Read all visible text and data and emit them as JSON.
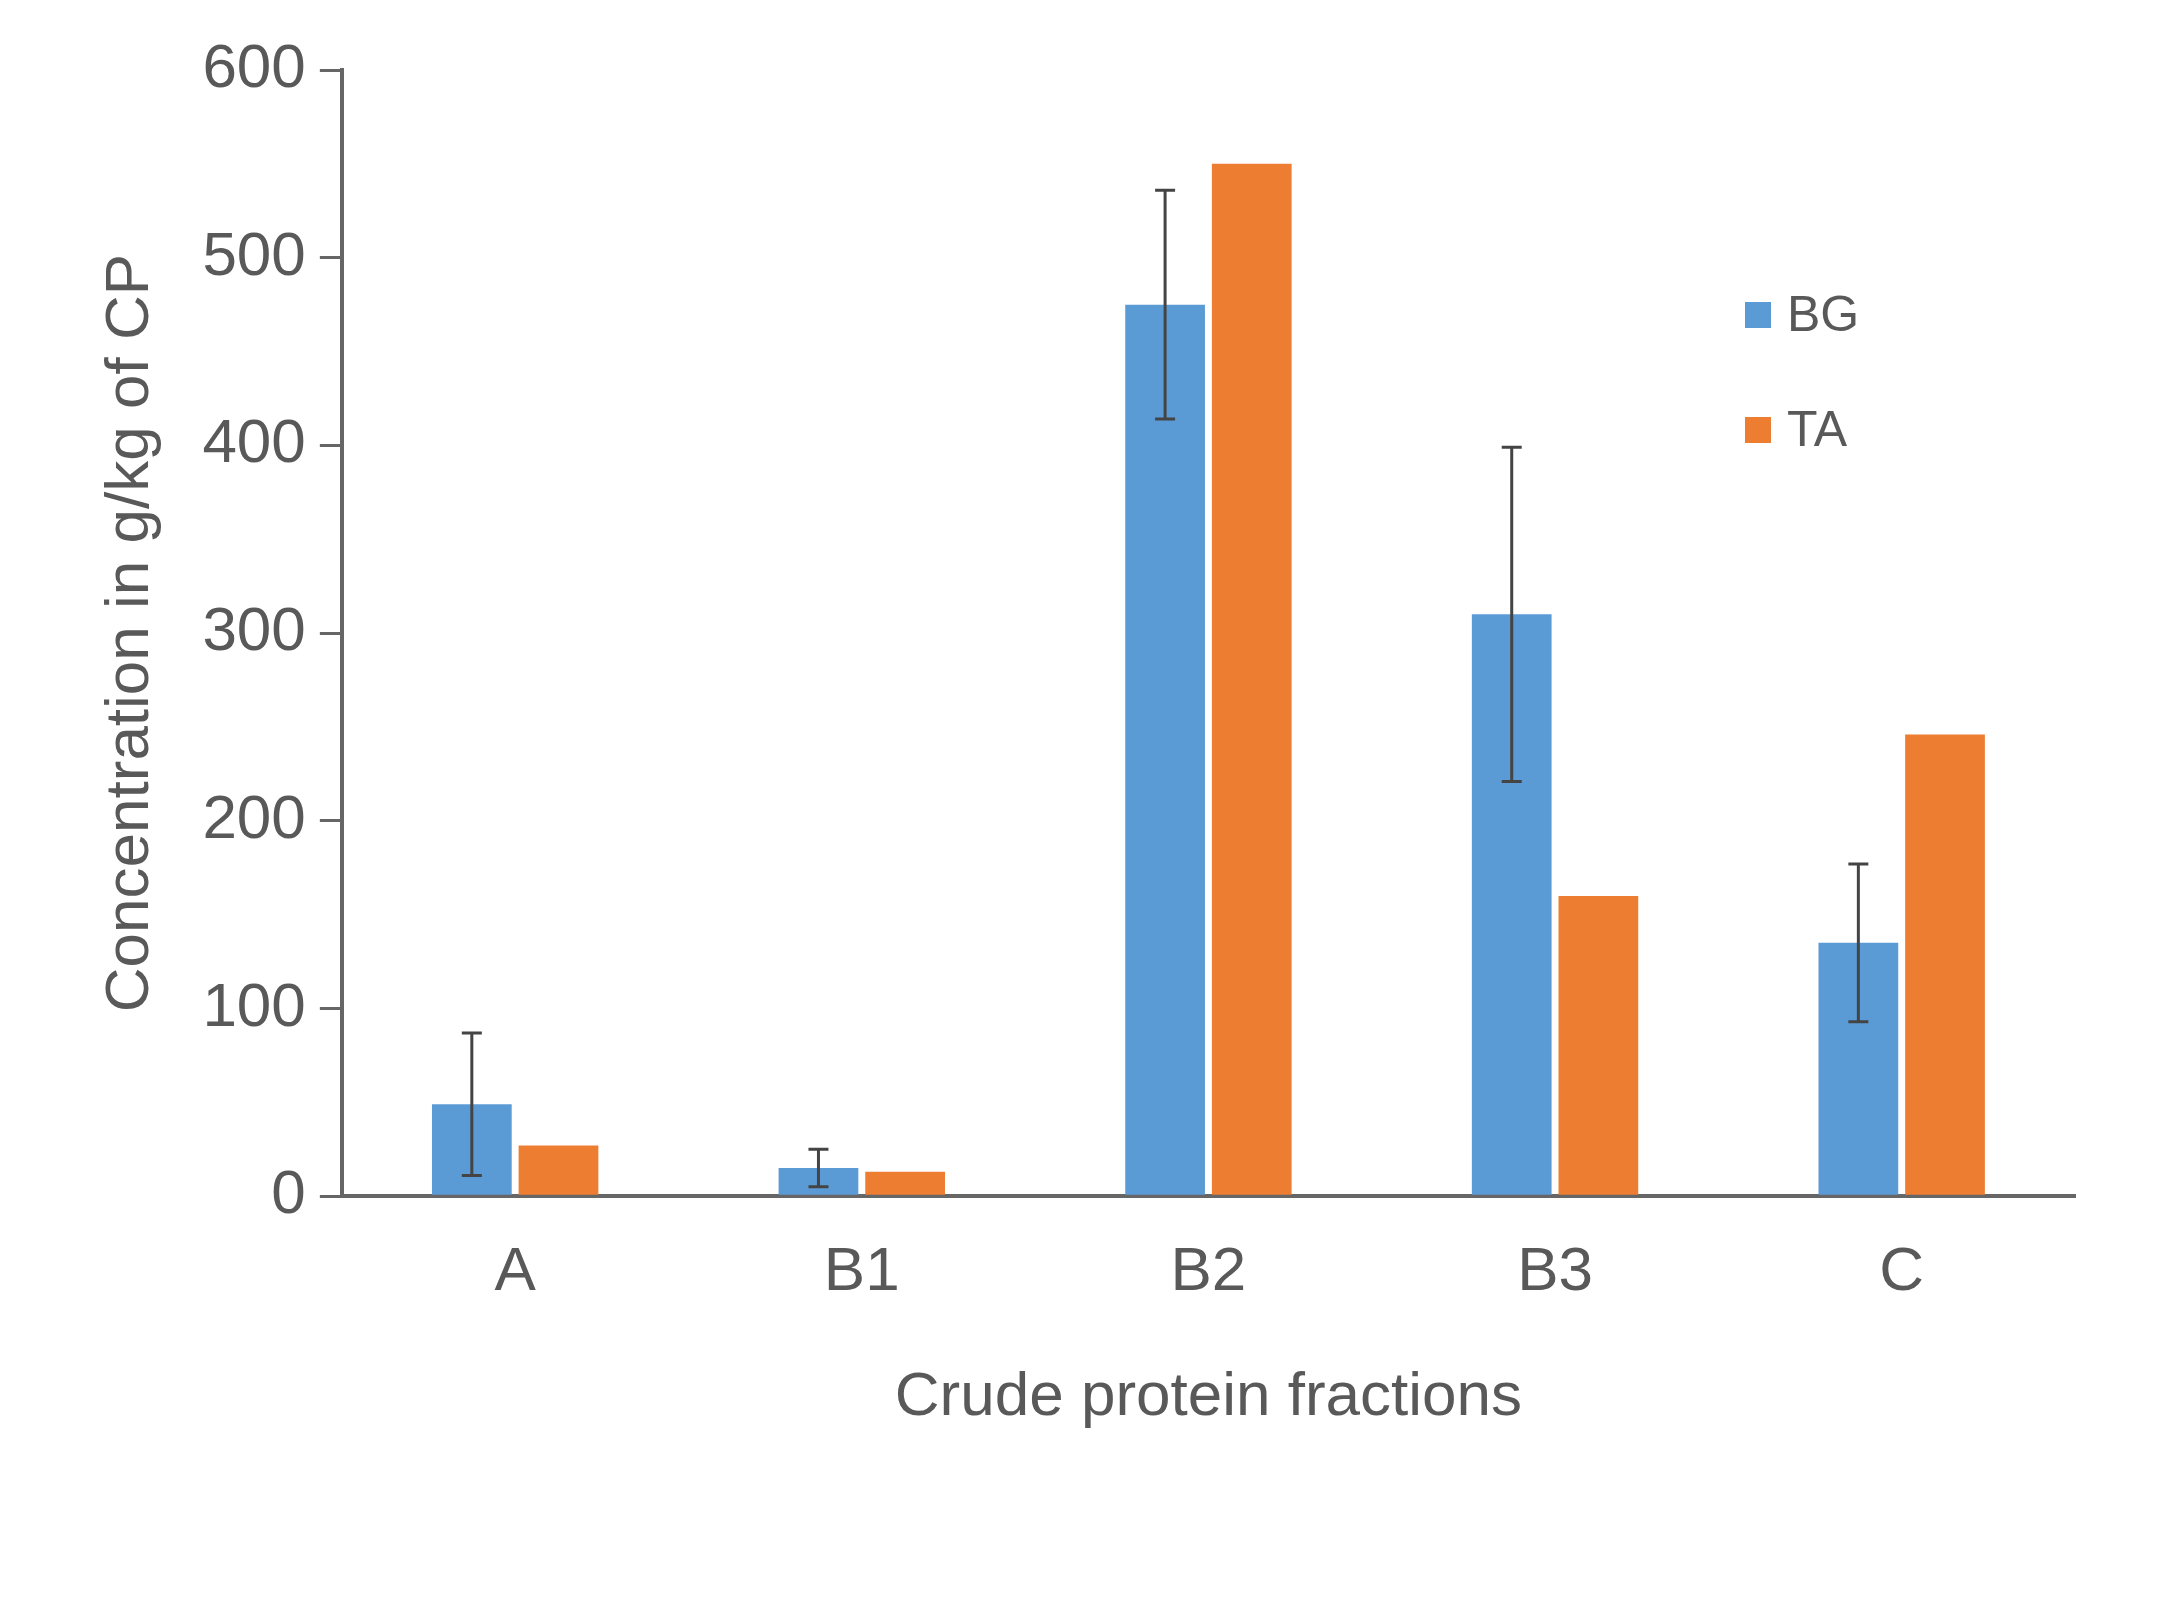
{
  "chart_data": {
    "type": "bar",
    "xlabel": "Crude protein fractions",
    "ylabel": "Concentration in g/kg of CP",
    "categories": [
      "A",
      "B1",
      "B2",
      "B3",
      "C"
    ],
    "series": [
      {
        "name": "BG",
        "color": "#5b9bd5",
        "values": [
          49,
          15,
          475,
          310,
          135
        ],
        "errors": [
          38,
          10,
          61,
          89,
          42
        ]
      },
      {
        "name": "TA",
        "color": "#ed7d31",
        "values": [
          27,
          13,
          550,
          160,
          246
        ]
      }
    ],
    "ylim": [
      0,
      600
    ],
    "yticks": [
      0,
      100,
      200,
      300,
      400,
      500,
      600
    ],
    "grid": false,
    "legend": "top right"
  }
}
